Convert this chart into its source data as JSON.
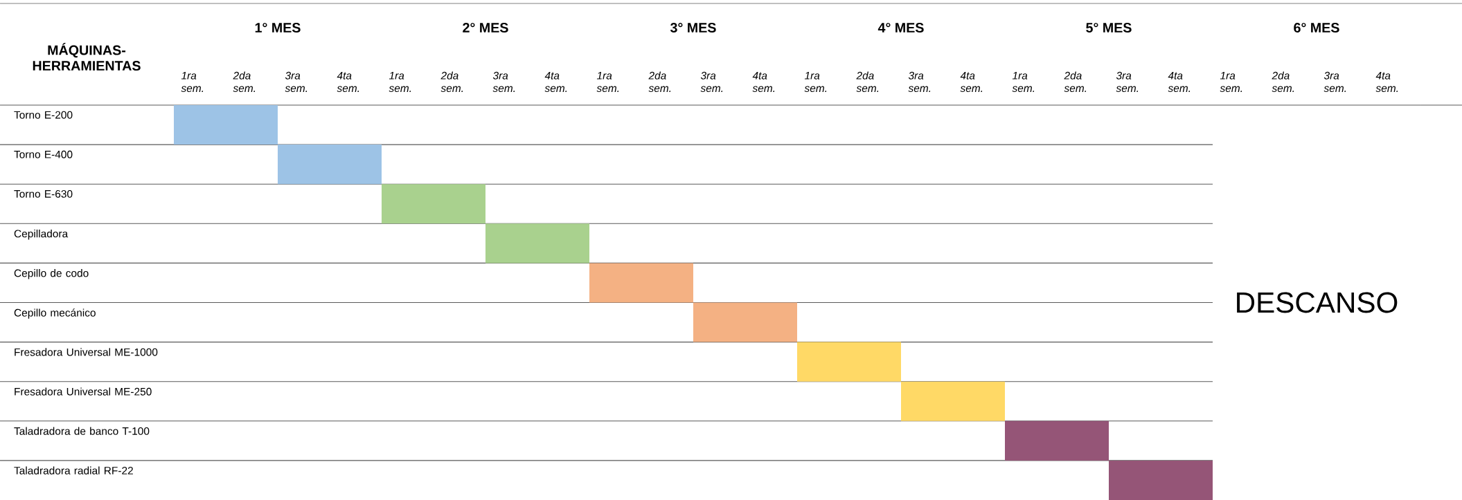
{
  "chart_data": {
    "type": "bar",
    "orientation": "horizontal",
    "ylabel": "MÁQUINAS-HERRAMIENTAS",
    "categories": [
      "Torno E-200",
      "Torno E-400",
      "Torno E-630",
      "Cepilladora",
      "Cepillo de codo",
      "Cepillo mecánico",
      "Fresadora Universal ME-1000",
      "Fresadora Universal ME-250",
      "Taladradora de banco T-100",
      "Taladradora radial RF-22"
    ],
    "base": [
      0.5,
      1,
      1.5,
      2,
      2.5,
      3,
      3.5,
      4,
      4.5,
      5
    ],
    "values": [
      0.5,
      0.5,
      0.5,
      0.5,
      0.5,
      0.5,
      0.5,
      0.5,
      0.5,
      0.5
    ],
    "colors": [
      "#9dc3e6",
      "#9dc3e6",
      "#a9d18e",
      "#a9d18e",
      "#f4b183",
      "#f4b183",
      "#ffd966",
      "#ffd966",
      "#955577",
      "#955577"
    ],
    "xlim": [
      0.5,
      6.5
    ],
    "xticks": [
      {
        "value": 1,
        "label": "1° MES"
      },
      {
        "value": 2,
        "label": "2° MES"
      },
      {
        "value": 3,
        "label": "3° MES"
      },
      {
        "value": 4,
        "label": "4° MES"
      },
      {
        "value": 5,
        "label": "5° MES"
      },
      {
        "value": 6,
        "label": "6° MES"
      }
    ],
    "annotations": [
      "1ra sem.",
      "2da sem.",
      "3ra sem.",
      "4ta sem.",
      "1ra sem.",
      "2da sem.",
      "3ra sem.",
      "4ta sem.",
      "1ra sem.",
      "2da sem.",
      "3ra sem.",
      "4ta sem.",
      "1ra sem.",
      "2da sem.",
      "3ra sem.",
      "4ta sem.",
      "1ra sem.",
      "2da sem.",
      "3ra sem.",
      "4ta sem.",
      "1ra sem.",
      "2da sem.",
      "3ra sem.",
      "4ta sem.",
      "DESCANSO"
    ]
  }
}
